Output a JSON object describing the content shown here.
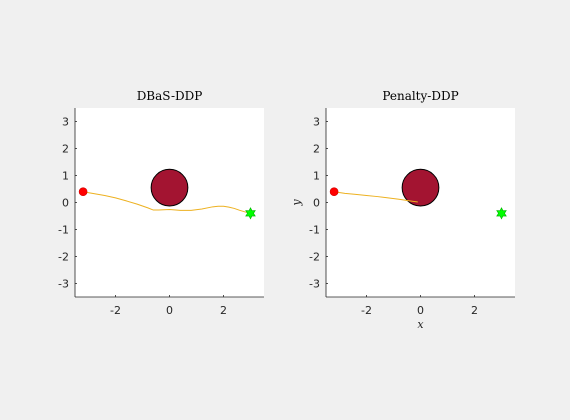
{
  "chart_data": [
    {
      "type": "line",
      "title": "DBaS-DDP",
      "xlabel": "",
      "ylabel": "",
      "xlim": [
        -3.5,
        3.5
      ],
      "ylim": [
        -3.5,
        3.5
      ],
      "xticks": [
        -2,
        0,
        2
      ],
      "yticks": [
        -3,
        -2,
        -1,
        0,
        1,
        2,
        3
      ],
      "obstacle": {
        "center": [
          0,
          0.55
        ],
        "radius": 0.68,
        "color": "#a31431"
      },
      "start": {
        "point": [
          -3.2,
          0.4
        ],
        "color": "#ff0000"
      },
      "goal": {
        "point": [
          3.0,
          -0.4
        ],
        "color": "#00ff00"
      },
      "series": [
        {
          "color": "#edb120",
          "x": [
            -3.2,
            -2.8,
            -2.4,
            -2.0,
            -1.6,
            -1.2,
            -0.8,
            -0.6,
            -0.4,
            0.0,
            0.4,
            0.8,
            1.2,
            1.6,
            1.8,
            2.0,
            2.2,
            2.4,
            2.6,
            2.8,
            3.0
          ],
          "y": [
            0.4,
            0.33,
            0.26,
            0.17,
            0.06,
            -0.06,
            -0.2,
            -0.28,
            -0.28,
            -0.26,
            -0.29,
            -0.29,
            -0.24,
            -0.16,
            -0.14,
            -0.14,
            -0.17,
            -0.22,
            -0.29,
            -0.35,
            -0.4
          ]
        }
      ]
    },
    {
      "type": "line",
      "title": "Penalty-DDP",
      "xlabel": "x",
      "ylabel": "y",
      "xlim": [
        -3.5,
        3.5
      ],
      "ylim": [
        -3.5,
        3.5
      ],
      "xticks": [
        -2,
        0,
        2
      ],
      "yticks": [
        -3,
        -2,
        -1,
        0,
        1,
        2,
        3
      ],
      "obstacle": {
        "center": [
          0,
          0.55
        ],
        "radius": 0.68,
        "color": "#a31431"
      },
      "start": {
        "point": [
          -3.2,
          0.4
        ],
        "color": "#ff0000"
      },
      "goal": {
        "point": [
          3.0,
          -0.4
        ],
        "color": "#00ff00"
      },
      "series": [
        {
          "color": "#edb120",
          "x": [
            -3.2,
            -2.8,
            -2.4,
            -2.0,
            -1.6,
            -1.2,
            -0.8,
            -0.4,
            -0.1
          ],
          "y": [
            0.4,
            0.34,
            0.3,
            0.26,
            0.22,
            0.17,
            0.12,
            0.06,
            0.02
          ]
        }
      ]
    }
  ]
}
